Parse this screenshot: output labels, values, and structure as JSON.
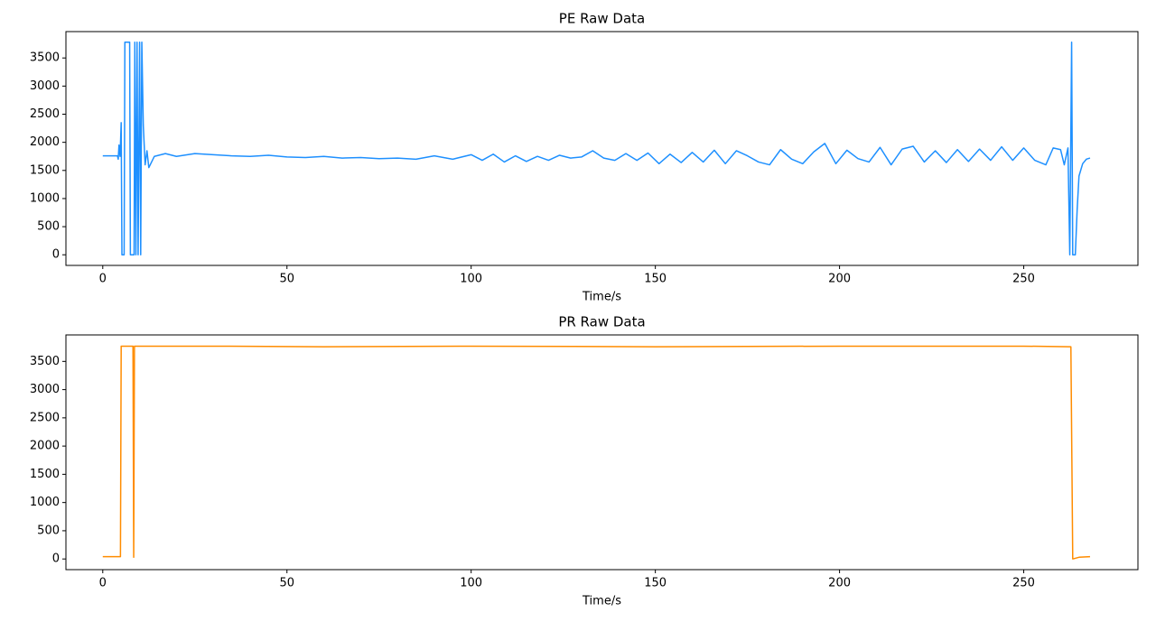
{
  "chart_data": [
    {
      "type": "line",
      "title": "PE Raw Data",
      "xlabel": "Time/s",
      "color": "#1e90ff",
      "x": [
        0,
        4,
        4.2,
        4.4,
        4.7,
        5,
        5.2,
        5.8,
        6,
        7.3,
        7.5,
        8.5,
        8.7,
        9,
        9.3,
        9.6,
        10,
        10.3,
        10.6,
        11,
        11.5,
        12,
        12.5,
        14,
        17,
        20,
        25,
        30,
        35,
        40,
        45,
        50,
        55,
        60,
        65,
        70,
        75,
        80,
        85,
        90,
        95,
        100,
        103,
        106,
        109,
        112,
        115,
        118,
        121,
        124,
        127,
        130,
        133,
        136,
        139,
        142,
        145,
        148,
        151,
        154,
        157,
        160,
        163,
        166,
        169,
        172,
        175,
        178,
        181,
        184,
        187,
        190,
        193,
        196,
        199,
        202,
        205,
        208,
        211,
        214,
        217,
        220,
        223,
        226,
        229,
        232,
        235,
        238,
        241,
        244,
        247,
        250,
        253,
        256,
        258,
        260,
        261,
        262,
        262.5,
        263,
        263.3,
        264,
        264.5,
        265,
        266,
        267,
        268
      ],
      "values": [
        1760,
        1760,
        1700,
        1950,
        1750,
        2350,
        0,
        0,
        3780,
        3780,
        0,
        0,
        3780,
        0,
        3780,
        0,
        3780,
        0,
        3780,
        2300,
        1600,
        1850,
        1550,
        1750,
        1800,
        1750,
        1800,
        1780,
        1760,
        1750,
        1770,
        1740,
        1730,
        1750,
        1720,
        1730,
        1710,
        1720,
        1700,
        1760,
        1700,
        1780,
        1680,
        1790,
        1650,
        1760,
        1660,
        1750,
        1680,
        1770,
        1720,
        1740,
        1850,
        1720,
        1680,
        1800,
        1680,
        1810,
        1620,
        1790,
        1640,
        1820,
        1650,
        1860,
        1620,
        1850,
        1760,
        1650,
        1600,
        1870,
        1700,
        1620,
        1830,
        1980,
        1620,
        1860,
        1710,
        1650,
        1910,
        1600,
        1880,
        1930,
        1650,
        1850,
        1640,
        1870,
        1660,
        1880,
        1680,
        1920,
        1680,
        1900,
        1680,
        1600,
        1900,
        1870,
        1600,
        1900,
        0,
        3780,
        0,
        0,
        800,
        1400,
        1620,
        1700,
        1720
      ],
      "xlim": [
        -10,
        281
      ],
      "ylim": [
        -189,
        3969
      ],
      "xticks": [
        0,
        50,
        100,
        150,
        200,
        250
      ],
      "yticks": [
        0,
        500,
        1000,
        1500,
        2000,
        2500,
        3000,
        3500
      ]
    },
    {
      "type": "line",
      "title": "PR Raw Data",
      "xlabel": "Time/s",
      "color": "#ff8c00",
      "x": [
        0,
        4.8,
        5,
        8.2,
        8.4,
        8.6,
        30,
        60,
        100,
        150,
        200,
        250,
        262.8,
        263.3,
        265,
        268
      ],
      "values": [
        40,
        40,
        3770,
        3770,
        30,
        3770,
        3770,
        3760,
        3770,
        3760,
        3770,
        3770,
        3760,
        0,
        30,
        40
      ],
      "xlim": [
        -10,
        281
      ],
      "ylim": [
        -189,
        3969
      ],
      "xticks": [
        0,
        50,
        100,
        150,
        200,
        250
      ],
      "yticks": [
        0,
        500,
        1000,
        1500,
        2000,
        2500,
        3000,
        3500
      ]
    }
  ]
}
